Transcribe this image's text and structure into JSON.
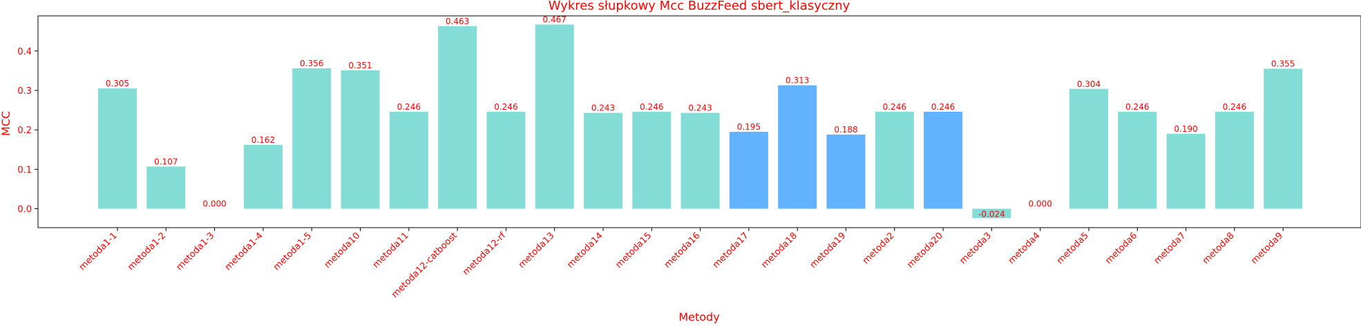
{
  "chart_data": {
    "type": "bar",
    "title": "Wykres słupkowy Mcc BuzzFeed sbert_klasyczny",
    "xlabel": "Metody",
    "ylabel": "MCC",
    "categories": [
      "metoda1-1",
      "metoda1-2",
      "metoda1-3",
      "metoda1-4",
      "metoda1-5",
      "metoda10",
      "metoda11",
      "metoda12-catboost",
      "metoda12-rf",
      "metoda13",
      "metoda14",
      "metoda15",
      "metoda16",
      "metoda17",
      "metoda18",
      "metoda19",
      "metoda2",
      "metoda20",
      "metoda3",
      "metoda4",
      "metoda5",
      "metoda6",
      "metoda7",
      "metoda8",
      "metoda9"
    ],
    "values": [
      0.305,
      0.107,
      0.0,
      0.162,
      0.356,
      0.351,
      0.246,
      0.463,
      0.246,
      0.467,
      0.243,
      0.246,
      0.243,
      0.195,
      0.313,
      0.188,
      0.246,
      0.246,
      -0.024,
      0.0,
      0.304,
      0.246,
      0.19,
      0.246,
      0.355
    ],
    "value_labels": [
      "0.305",
      "0.107",
      "0.000",
      "0.162",
      "0.356",
      "0.351",
      "0.246",
      "0.463",
      "0.246",
      "0.467",
      "0.243",
      "0.246",
      "0.243",
      "0.195",
      "0.313",
      "0.188",
      "0.246",
      "0.246",
      "-0.024",
      "0.000",
      "0.304",
      "0.246",
      "0.190",
      "0.246",
      "0.355"
    ],
    "bar_colors": [
      "#84dcd6",
      "#84dcd6",
      "#84dcd6",
      "#84dcd6",
      "#84dcd6",
      "#84dcd6",
      "#84dcd6",
      "#84dcd6",
      "#84dcd6",
      "#84dcd6",
      "#84dcd6",
      "#84dcd6",
      "#84dcd6",
      "#62b2fd",
      "#62b2fd",
      "#62b2fd",
      "#84dcd6",
      "#62b2fd",
      "#84dcd6",
      "#84dcd6",
      "#84dcd6",
      "#84dcd6",
      "#84dcd6",
      "#84dcd6",
      "#84dcd6"
    ],
    "ylim": [
      -0.048,
      0.489
    ],
    "yticks": [
      0.0,
      0.1,
      0.2,
      0.3,
      0.4
    ],
    "ytick_labels": [
      "0.0",
      "0.1",
      "0.2",
      "0.3",
      "0.4"
    ],
    "grid": false,
    "text_color": "#ff0000"
  }
}
